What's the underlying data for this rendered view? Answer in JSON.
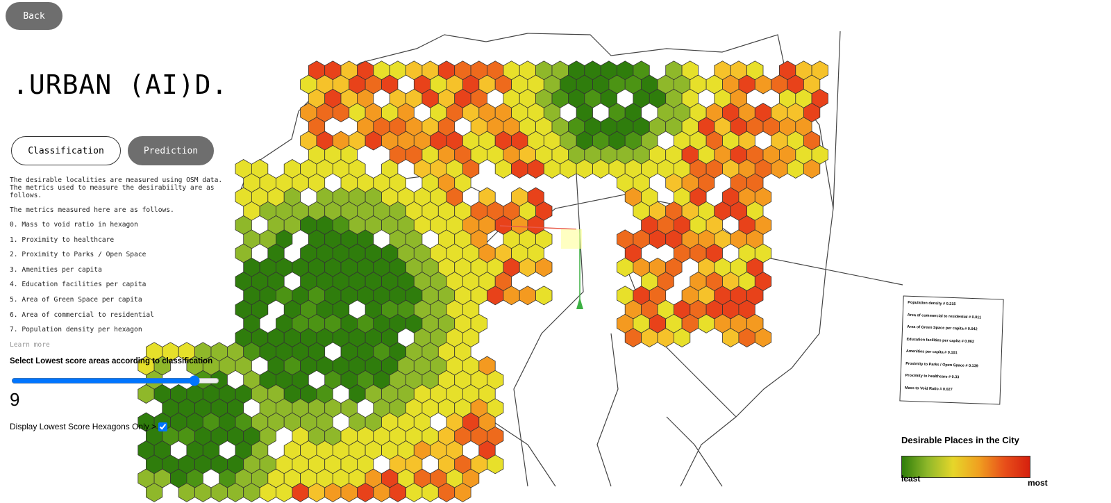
{
  "back_button": "Back",
  "app_title": ".URBAN (AI)D.",
  "tabs": [
    "Classification",
    "Prediction"
  ],
  "description": [
    "The desirable localities are measured using OSM data. The metrics used to measure the desirabiilty are as follows.",
    "The metrics measured here are as follows."
  ],
  "metrics": [
    "0. Mass to void ratio in hexagon",
    "1. Proximity to healthcare",
    "2. Proximity to Parks / Open Space",
    "3. Amenities per capita",
    "4. Education facilities per capita",
    "5. Area of Green Space per capita",
    "6. Area of commercial to residential",
    "7. Population density per hexagon"
  ],
  "learn_more": "Learn more",
  "slider": {
    "label": "Select Lowest score areas according to classification",
    "value": 9
  },
  "checkbox_label": "Display Lowest Score Hexagons Only >",
  "weights_box": [
    "Population density  #  0.215",
    "Area of commercial to residential  #  0.011",
    "Area of Green Space per capita  #  0.042",
    "Education facilities per capita  #  0.062",
    "Amenities per capita  #  0.101",
    "Proximity to Parks / Open Space  #  0.139",
    "Proximity to healthcare  #  0.33",
    "Mass to Void Ratio  #  0.027"
  ],
  "legend": {
    "title": "Desirable Places in the City",
    "low": "least",
    "high": "most"
  }
}
